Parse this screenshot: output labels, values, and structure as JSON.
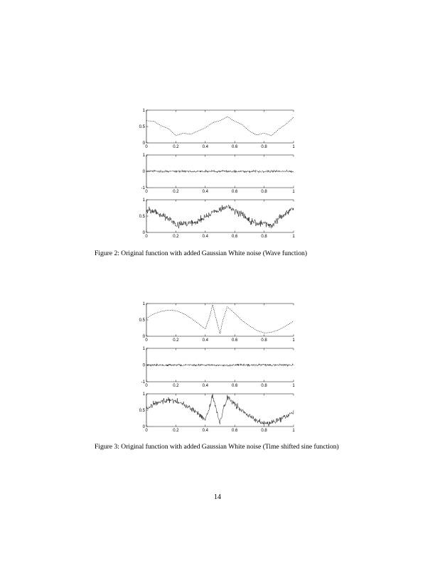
{
  "figure2": {
    "caption": "Figure 2: Original function with added Gaussian White noise (Wave function)",
    "chart_data": [
      {
        "type": "line",
        "x": [
          0,
          0.05,
          0.1,
          0.15,
          0.2,
          0.25,
          0.3,
          0.35,
          0.4,
          0.45,
          0.5,
          0.55,
          0.6,
          0.65,
          0.7,
          0.75,
          0.8,
          0.85,
          0.9,
          0.95,
          1
        ],
        "series": [
          {
            "values": [
              0.68,
              0.66,
              0.52,
              0.44,
              0.22,
              0.3,
              0.26,
              0.36,
              0.46,
              0.62,
              0.68,
              0.8,
              0.66,
              0.56,
              0.36,
              0.24,
              0.3,
              0.22,
              0.42,
              0.58,
              0.78
            ]
          }
        ],
        "xlim": [
          0,
          1
        ],
        "ylim": [
          0,
          1
        ],
        "xticks": [
          "0",
          "0.2",
          "0.4",
          "0.6",
          "0.8",
          "1"
        ],
        "yticks": [
          "0",
          "0.5",
          "1"
        ]
      },
      {
        "type": "line",
        "x": [
          0,
          1
        ],
        "series": [
          {
            "values": [
              0,
              0
            ]
          }
        ],
        "noise_amplitude": 0.05,
        "xlim": [
          0,
          1
        ],
        "ylim": [
          -1,
          1
        ],
        "xticks": [
          "0",
          "0.2",
          "0.4",
          "0.6",
          "0.8",
          "1"
        ],
        "yticks": [
          "-1",
          "0",
          "1"
        ]
      },
      {
        "type": "line",
        "x": [
          0,
          0.05,
          0.1,
          0.15,
          0.2,
          0.25,
          0.3,
          0.35,
          0.4,
          0.45,
          0.5,
          0.55,
          0.6,
          0.65,
          0.7,
          0.75,
          0.8,
          0.85,
          0.9,
          0.95,
          1
        ],
        "series": [
          {
            "values": [
              0.68,
              0.66,
              0.52,
              0.44,
              0.22,
              0.3,
              0.26,
              0.36,
              0.46,
              0.62,
              0.68,
              0.8,
              0.66,
              0.56,
              0.36,
              0.24,
              0.3,
              0.22,
              0.42,
              0.58,
              0.78
            ]
          }
        ],
        "noise_amplitude": 0.07,
        "xlim": [
          0,
          1
        ],
        "ylim": [
          0,
          1
        ],
        "xticks": [
          "0",
          "0.2",
          "0.4",
          "0.6",
          "0.8",
          "1"
        ],
        "yticks": [
          "0",
          "0.5",
          "1"
        ]
      }
    ]
  },
  "figure3": {
    "caption": "Figure 3: Original function with added Gaussian White noise (Time shifted sine function)",
    "chart_data": [
      {
        "type": "line",
        "x": [
          0,
          0.05,
          0.1,
          0.15,
          0.2,
          0.25,
          0.3,
          0.35,
          0.4,
          0.43,
          0.45,
          0.47,
          0.5,
          0.52,
          0.55,
          0.6,
          0.65,
          0.7,
          0.75,
          0.8,
          0.85,
          0.9,
          0.95,
          1
        ],
        "series": [
          {
            "values": [
              0.55,
              0.68,
              0.76,
              0.8,
              0.78,
              0.7,
              0.56,
              0.4,
              0.22,
              0.6,
              0.96,
              0.6,
              0.08,
              0.5,
              0.9,
              0.7,
              0.48,
              0.32,
              0.18,
              0.1,
              0.12,
              0.2,
              0.32,
              0.46
            ]
          }
        ],
        "xlim": [
          0,
          1
        ],
        "ylim": [
          0,
          1
        ],
        "xticks": [
          "0",
          "0.2",
          "0.4",
          "0.6",
          "0.8",
          "1"
        ],
        "yticks": [
          "0",
          "0.5",
          "1"
        ]
      },
      {
        "type": "line",
        "x": [
          0,
          1
        ],
        "series": [
          {
            "values": [
              0,
              0
            ]
          }
        ],
        "noise_amplitude": 0.05,
        "xlim": [
          0,
          1
        ],
        "ylim": [
          -1,
          1
        ],
        "xticks": [
          "0",
          "0.2",
          "0.4",
          "0.6",
          "0.8",
          "1"
        ],
        "yticks": [
          "-1",
          "0",
          "1"
        ]
      },
      {
        "type": "line",
        "x": [
          0,
          0.05,
          0.1,
          0.15,
          0.2,
          0.25,
          0.3,
          0.35,
          0.4,
          0.43,
          0.45,
          0.47,
          0.5,
          0.52,
          0.55,
          0.6,
          0.65,
          0.7,
          0.75,
          0.8,
          0.85,
          0.9,
          0.95,
          1
        ],
        "series": [
          {
            "values": [
              0.55,
              0.68,
              0.76,
              0.8,
              0.78,
              0.7,
              0.56,
              0.4,
              0.22,
              0.6,
              0.96,
              0.6,
              0.08,
              0.5,
              0.9,
              0.7,
              0.48,
              0.32,
              0.18,
              0.1,
              0.12,
              0.2,
              0.32,
              0.46
            ]
          }
        ],
        "noise_amplitude": 0.06,
        "xlim": [
          0,
          1
        ],
        "ylim": [
          0,
          1
        ],
        "xticks": [
          "0",
          "0.2",
          "0.4",
          "0.6",
          "0.8",
          "1"
        ],
        "yticks": [
          "0",
          "0.5",
          "1"
        ]
      }
    ]
  },
  "page_number": "14"
}
